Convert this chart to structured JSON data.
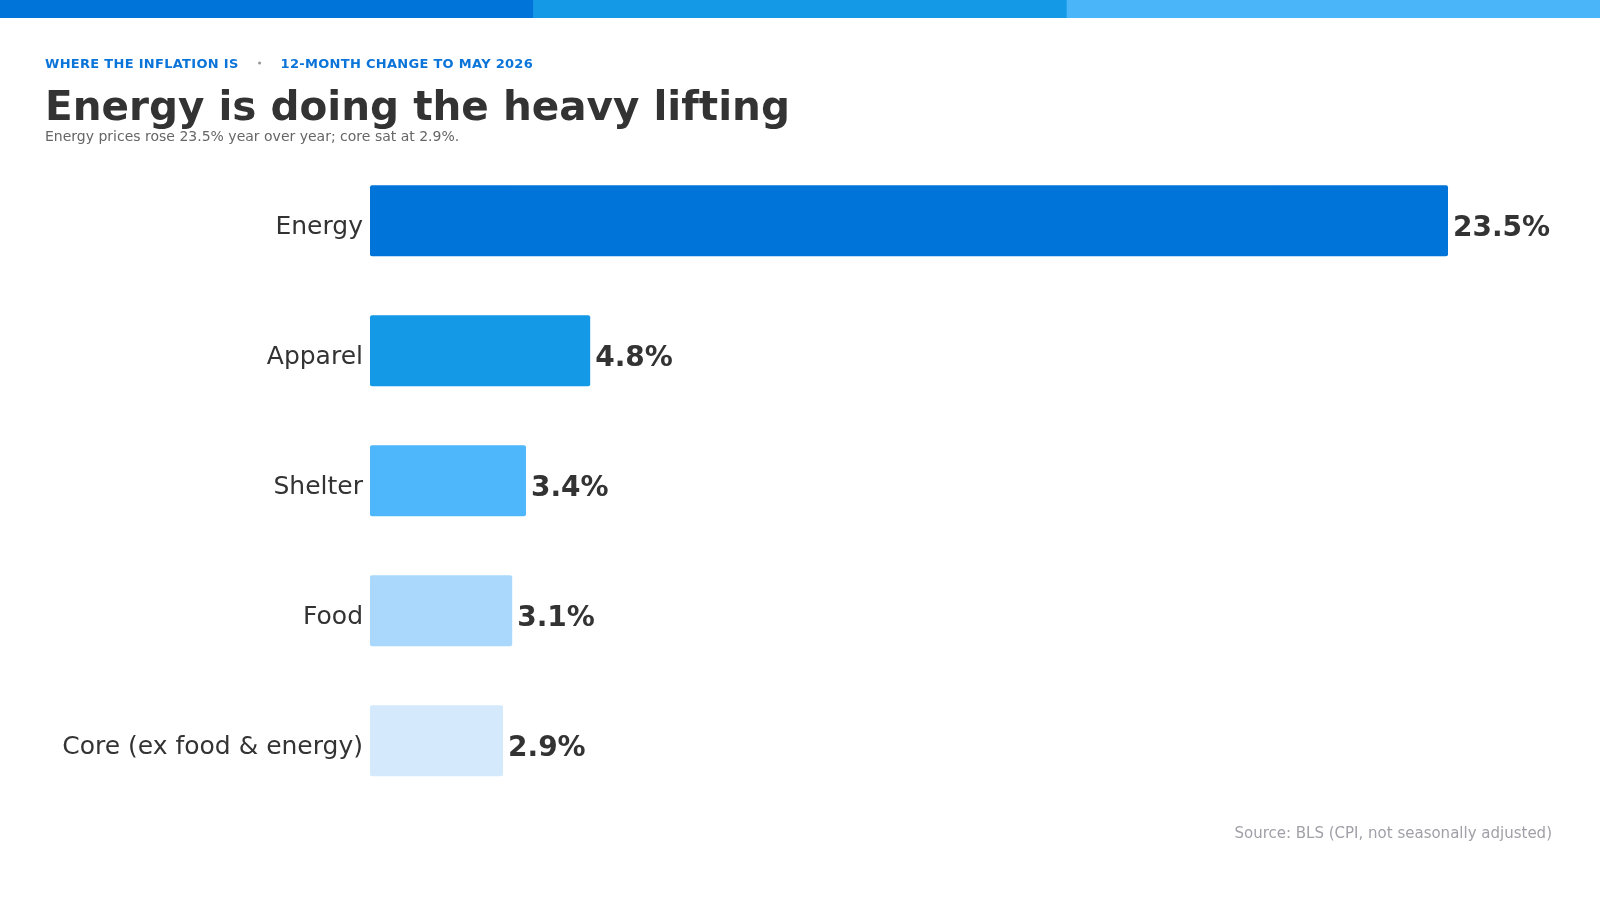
{
  "chart_data": {
    "type": "bar",
    "orientation": "horizontal",
    "title": "Energy is doing the heavy lifting",
    "subtitle": "Energy prices rose 23.5% year over year; core sat at 2.9%.",
    "categories": [
      "Energy",
      "Apparel",
      "Shelter",
      "Food",
      "Core (ex food & energy)"
    ],
    "values": [
      23.5,
      4.8,
      3.4,
      3.1,
      2.9
    ],
    "colors": [
      "#0074d9",
      "#1399e6",
      "#4eb7fb",
      "#a9d8fc",
      "#d5e9fc"
    ],
    "value_labels": [
      "23.5%",
      "4.8%",
      "3.4%",
      "3.1%",
      "2.9%"
    ],
    "annotations": [
      "WHERE THE INFLATION IS",
      "12-MONTH CHANGE TO MAY 2026",
      "Source: BLS (CPI, not seasonally adjusted)"
    ]
  }
}
